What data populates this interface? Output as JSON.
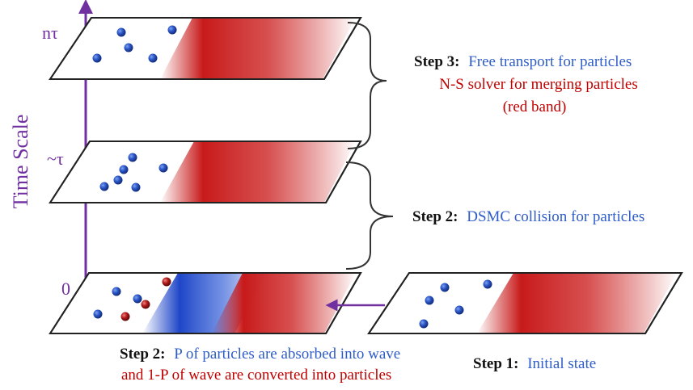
{
  "axis": {
    "label": "Time Scale",
    "ticks": [
      "nτ",
      "~τ",
      "0"
    ]
  },
  "steps": {
    "step3": {
      "prefix": "Step 3:",
      "line1": "Free transport for particles",
      "line2": "N-S solver for merging particles",
      "line3": "(red band)"
    },
    "step2_collision": {
      "prefix": "Step 2:",
      "text": "DSMC collision for particles"
    },
    "step2_absorb": {
      "prefix": "Step 2:",
      "line1": "P of particles are absorbed into wave",
      "line2": "and 1-P of wave are converted into particles"
    },
    "step1": {
      "prefix": "Step 1:",
      "text": "Initial state"
    }
  },
  "colors": {
    "axis": "#7030a0",
    "blue_text": "#2e5cc8",
    "red_text": "#c00000",
    "black_text": "#111111",
    "particle_blue": "#2a55c6",
    "particle_red": "#b11a1a",
    "wave_red": "#c81a1a",
    "wave_blue": "#1e46c8"
  }
}
